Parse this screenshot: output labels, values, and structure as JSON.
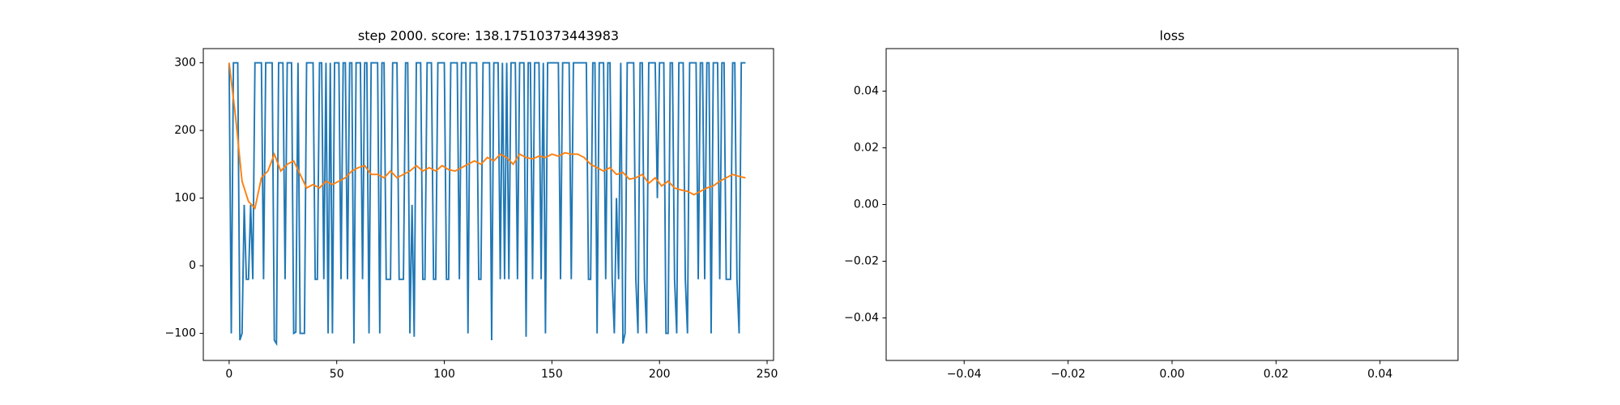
{
  "chart_data": [
    {
      "type": "line",
      "title": "step 2000. score: 138.17510373443983",
      "xlim": [
        -12,
        253
      ],
      "ylim": [
        -140,
        321
      ],
      "xticks": [
        0,
        50,
        100,
        150,
        200,
        250
      ],
      "yticks": [
        {
          "value": -100,
          "label": "−100"
        },
        0,
        100,
        200,
        300
      ],
      "series": [
        {
          "color": "#1f77b4",
          "x": [
            0,
            1,
            2,
            3,
            4,
            5,
            6,
            7,
            8,
            9,
            10,
            11,
            12,
            13,
            14,
            15,
            16,
            17,
            18,
            19,
            20,
            21,
            22,
            23,
            24,
            25,
            26,
            27,
            28,
            29,
            30,
            31,
            32,
            33,
            34,
            35,
            36,
            37,
            38,
            39,
            40,
            41,
            42,
            43,
            44,
            45,
            46,
            47,
            48,
            49,
            50,
            51,
            52,
            53,
            54,
            55,
            56,
            57,
            58,
            59,
            60,
            61,
            62,
            63,
            64,
            65,
            66,
            67,
            68,
            69,
            70,
            71,
            72,
            73,
            74,
            75,
            76,
            77,
            78,
            79,
            80,
            81,
            82,
            83,
            84,
            85,
            86,
            87,
            88,
            89,
            90,
            91,
            92,
            93,
            94,
            95,
            96,
            97,
            98,
            99,
            100,
            101,
            102,
            103,
            104,
            105,
            106,
            107,
            108,
            109,
            110,
            111,
            112,
            113,
            114,
            115,
            116,
            117,
            118,
            119,
            120,
            121,
            122,
            123,
            124,
            125,
            126,
            127,
            128,
            129,
            130,
            131,
            132,
            133,
            134,
            135,
            136,
            137,
            138,
            139,
            140,
            141,
            142,
            143,
            144,
            145,
            146,
            147,
            148,
            149,
            150,
            151,
            152,
            153,
            154,
            155,
            156,
            157,
            158,
            159,
            160,
            161,
            162,
            163,
            164,
            165,
            166,
            167,
            168,
            169,
            170,
            171,
            172,
            173,
            174,
            175,
            176,
            177,
            178,
            179,
            180,
            181,
            182,
            183,
            184,
            185,
            186,
            187,
            188,
            189,
            190,
            191,
            192,
            193,
            194,
            195,
            196,
            197,
            198,
            199,
            200,
            201,
            202,
            203,
            204,
            205,
            206,
            207,
            208,
            209,
            210,
            211,
            212,
            213,
            214,
            215,
            216,
            217,
            218,
            219,
            220,
            221,
            222,
            223,
            224,
            225,
            226,
            227,
            228,
            229,
            230,
            231,
            232,
            233,
            234,
            235,
            236,
            237,
            238,
            239,
            240
          ],
          "values": [
            300,
            -100,
            300,
            300,
            300,
            -110,
            -100,
            90,
            -20,
            -20,
            90,
            -20,
            300,
            300,
            300,
            300,
            -20,
            300,
            300,
            300,
            300,
            -110,
            -115,
            300,
            300,
            300,
            -20,
            300,
            300,
            300,
            -100,
            -98,
            300,
            -100,
            -100,
            -100,
            300,
            300,
            300,
            300,
            -20,
            -20,
            300,
            300,
            -20,
            300,
            -100,
            300,
            -100,
            300,
            300,
            300,
            -20,
            300,
            300,
            -20,
            300,
            300,
            -115,
            300,
            300,
            300,
            -20,
            300,
            300,
            -100,
            300,
            300,
            300,
            300,
            -100,
            300,
            300,
            -20,
            -20,
            -20,
            300,
            300,
            300,
            -20,
            -20,
            -20,
            300,
            300,
            -100,
            90,
            -105,
            300,
            300,
            300,
            -20,
            -20,
            300,
            300,
            300,
            -20,
            -20,
            300,
            300,
            300,
            300,
            -20,
            -20,
            300,
            300,
            300,
            300,
            -20,
            300,
            300,
            300,
            -100,
            300,
            300,
            300,
            300,
            -20,
            -20,
            300,
            300,
            300,
            300,
            -110,
            300,
            300,
            300,
            -20,
            300,
            -20,
            300,
            -20,
            300,
            300,
            300,
            -20,
            300,
            300,
            300,
            -105,
            300,
            300,
            -20,
            300,
            300,
            300,
            -20,
            300,
            -100,
            300,
            300,
            300,
            300,
            300,
            300,
            -20,
            300,
            300,
            300,
            300,
            -20,
            300,
            300,
            300,
            300,
            300,
            300,
            300,
            -20,
            -20,
            300,
            300,
            -100,
            300,
            300,
            300,
            -20,
            300,
            300,
            -20,
            -100,
            100,
            -20,
            300,
            -115,
            -100,
            300,
            300,
            300,
            300,
            -20,
            -100,
            300,
            300,
            -20,
            -100,
            300,
            300,
            300,
            300,
            100,
            300,
            300,
            300,
            -100,
            -100,
            300,
            300,
            -20,
            -100,
            300,
            300,
            300,
            -20,
            -100,
            300,
            300,
            300,
            300,
            -20,
            300,
            300,
            -20,
            300,
            300,
            -100,
            300,
            300,
            300,
            -20,
            300,
            300,
            -20,
            -20,
            -20,
            300,
            300,
            -20,
            -100,
            300,
            300,
            300
          ]
        },
        {
          "color": "#ff7f0e",
          "x": [
            0,
            3,
            6,
            9,
            12,
            15,
            18,
            21,
            24,
            27,
            30,
            33,
            36,
            39,
            42,
            45,
            48,
            51,
            54,
            57,
            60,
            63,
            66,
            69,
            72,
            75,
            78,
            81,
            84,
            87,
            90,
            93,
            96,
            99,
            102,
            105,
            108,
            111,
            114,
            117,
            120,
            123,
            126,
            129,
            132,
            135,
            138,
            141,
            144,
            147,
            150,
            153,
            156,
            159,
            162,
            165,
            168,
            171,
            174,
            177,
            180,
            183,
            186,
            189,
            192,
            195,
            198,
            201,
            204,
            207,
            210,
            213,
            216,
            219,
            222,
            225,
            228,
            231,
            234,
            237,
            240
          ],
          "values": [
            300,
            220,
            125,
            95,
            85,
            130,
            140,
            165,
            140,
            150,
            155,
            135,
            115,
            120,
            115,
            125,
            120,
            125,
            130,
            140,
            145,
            148,
            135,
            135,
            130,
            140,
            130,
            135,
            140,
            148,
            140,
            145,
            140,
            148,
            142,
            140,
            145,
            150,
            155,
            150,
            160,
            155,
            165,
            160,
            150,
            165,
            160,
            158,
            162,
            160,
            165,
            162,
            167,
            165,
            165,
            160,
            150,
            145,
            140,
            145,
            135,
            138,
            128,
            130,
            135,
            122,
            130,
            118,
            125,
            115,
            112,
            110,
            105,
            110,
            115,
            118,
            125,
            130,
            135,
            132,
            130
          ]
        }
      ]
    },
    {
      "type": "line",
      "title": "loss",
      "xlim": [
        -0.055,
        0.055
      ],
      "ylim": [
        -0.055,
        0.055
      ],
      "xticks": [
        {
          "value": -0.04,
          "label": "−0.04"
        },
        {
          "value": -0.02,
          "label": "−0.02"
        },
        {
          "value": 0,
          "label": "0.00"
        },
        0.02,
        0.04
      ],
      "yticks": [
        {
          "value": -0.04,
          "label": "−0.04"
        },
        {
          "value": -0.02,
          "label": "−0.02"
        },
        {
          "value": 0,
          "label": "0.00"
        },
        0.02,
        0.04
      ],
      "series": []
    }
  ]
}
